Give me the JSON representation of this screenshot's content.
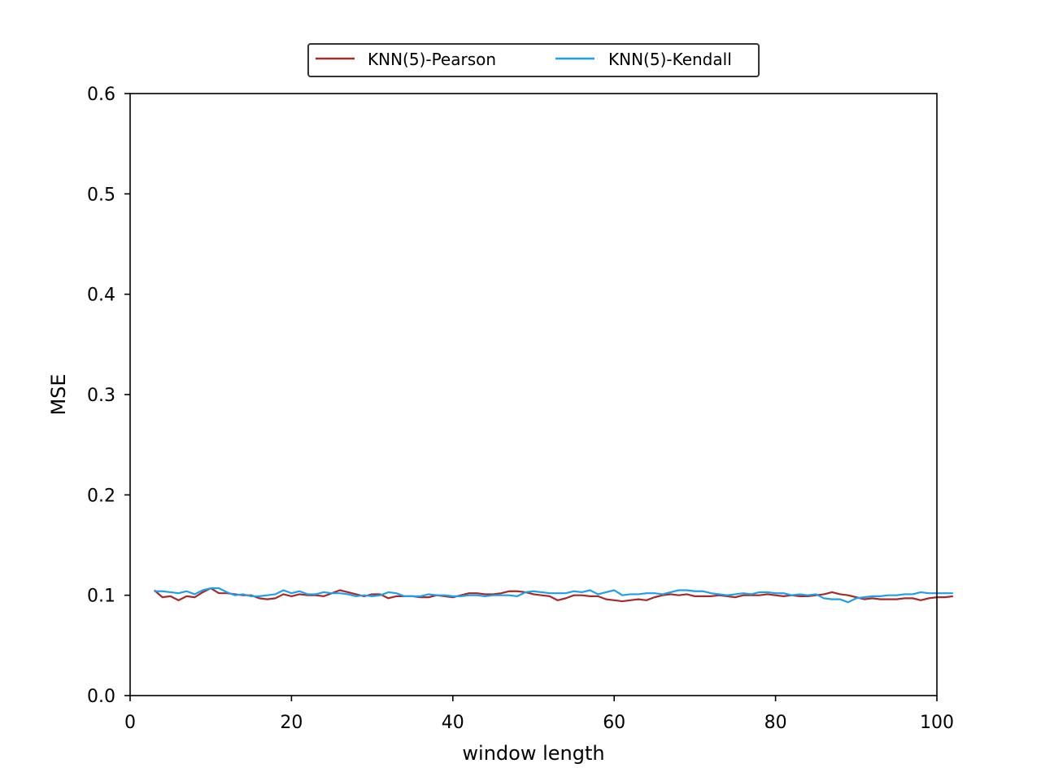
{
  "chart_data": {
    "type": "line",
    "xlabel": "window length",
    "ylabel": "MSE",
    "xlim": [
      0,
      100
    ],
    "ylim": [
      0.0,
      0.6
    ],
    "xticks": [
      0,
      20,
      40,
      60,
      80,
      100
    ],
    "xtick_labels": [
      "0",
      "20",
      "40",
      "60",
      "80",
      "100"
    ],
    "yticks": [
      0.0,
      0.1,
      0.2,
      0.3,
      0.4,
      0.5,
      0.6
    ],
    "ytick_labels": [
      "0.0",
      "0.1",
      "0.2",
      "0.3",
      "0.4",
      "0.5",
      "0.6"
    ],
    "grid": false,
    "legend_position": "top-center",
    "x_start": 3,
    "series": [
      {
        "name": "KNN(5)-Pearson",
        "color": "#a52a2a",
        "values": [
          0.105,
          0.098,
          0.099,
          0.095,
          0.099,
          0.098,
          0.103,
          0.107,
          0.102,
          0.102,
          0.101,
          0.1,
          0.1,
          0.097,
          0.096,
          0.097,
          0.101,
          0.099,
          0.101,
          0.1,
          0.1,
          0.099,
          0.102,
          0.105,
          0.103,
          0.101,
          0.099,
          0.101,
          0.101,
          0.097,
          0.099,
          0.099,
          0.099,
          0.098,
          0.098,
          0.1,
          0.099,
          0.098,
          0.1,
          0.102,
          0.102,
          0.101,
          0.101,
          0.102,
          0.104,
          0.104,
          0.103,
          0.101,
          0.1,
          0.099,
          0.095,
          0.097,
          0.1,
          0.1,
          0.099,
          0.099,
          0.096,
          0.095,
          0.094,
          0.095,
          0.096,
          0.095,
          0.098,
          0.1,
          0.101,
          0.1,
          0.101,
          0.099,
          0.099,
          0.099,
          0.1,
          0.099,
          0.098,
          0.1,
          0.1,
          0.1,
          0.101,
          0.1,
          0.099,
          0.1,
          0.099,
          0.099,
          0.1,
          0.101,
          0.103,
          0.101,
          0.1,
          0.098,
          0.096,
          0.097,
          0.096,
          0.096,
          0.096,
          0.097,
          0.097,
          0.095,
          0.097,
          0.098,
          0.098,
          0.099
        ]
      },
      {
        "name": "KNN(5)-Kendall",
        "color": "#1f9fea",
        "values": [
          0.104,
          0.104,
          0.103,
          0.102,
          0.104,
          0.101,
          0.105,
          0.107,
          0.107,
          0.103,
          0.1,
          0.101,
          0.099,
          0.099,
          0.1,
          0.101,
          0.105,
          0.102,
          0.104,
          0.101,
          0.101,
          0.103,
          0.102,
          0.102,
          0.101,
          0.099,
          0.1,
          0.099,
          0.1,
          0.103,
          0.102,
          0.099,
          0.099,
          0.099,
          0.101,
          0.1,
          0.1,
          0.099,
          0.099,
          0.1,
          0.1,
          0.099,
          0.1,
          0.1,
          0.1,
          0.099,
          0.103,
          0.104,
          0.103,
          0.102,
          0.102,
          0.102,
          0.104,
          0.103,
          0.105,
          0.101,
          0.103,
          0.105,
          0.1,
          0.101,
          0.101,
          0.102,
          0.102,
          0.101,
          0.103,
          0.105,
          0.105,
          0.104,
          0.104,
          0.102,
          0.101,
          0.1,
          0.101,
          0.102,
          0.101,
          0.103,
          0.103,
          0.102,
          0.102,
          0.1,
          0.101,
          0.1,
          0.101,
          0.097,
          0.096,
          0.096,
          0.093,
          0.097,
          0.098,
          0.099,
          0.099,
          0.1,
          0.1,
          0.101,
          0.101,
          0.103,
          0.102,
          0.102,
          0.102,
          0.102
        ]
      }
    ]
  }
}
